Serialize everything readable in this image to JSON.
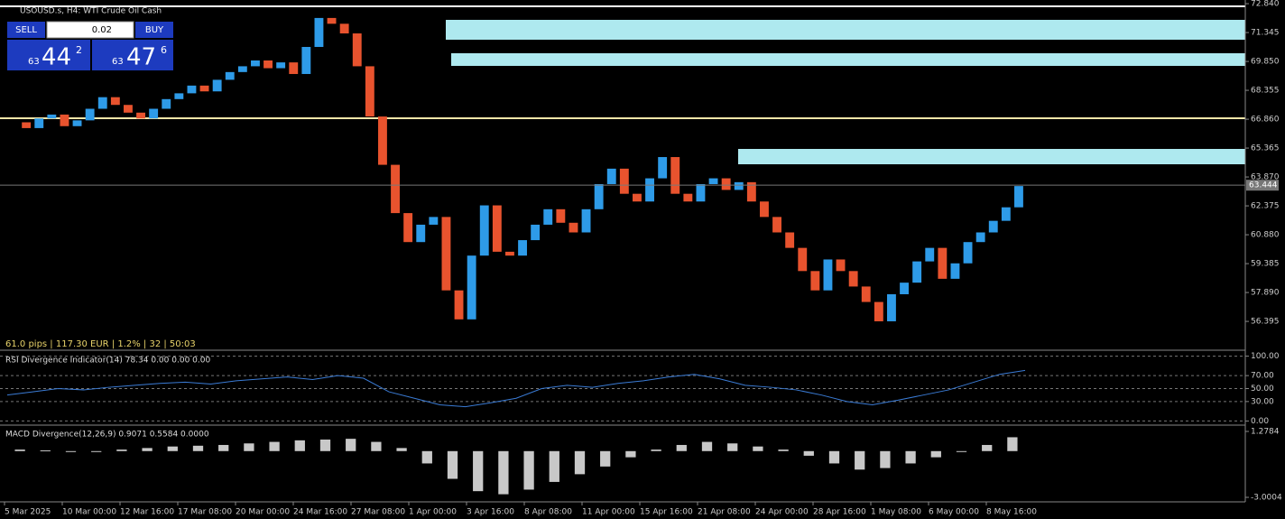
{
  "header": {
    "symbol": "USOUSD.s, H4:  WTI Crude Oil Cash"
  },
  "trade_panel": {
    "sell": "SELL",
    "lot": "0.02",
    "buy": "BUY",
    "bid": [
      "63",
      "44",
      "2"
    ],
    "ask": [
      "63",
      "47",
      "6"
    ]
  },
  "info": "61.0 pips | 117.30 EUR | 1.2% | 32 | 50:03",
  "chart_data": [
    {
      "type": "candlestick",
      "name": "price",
      "closes": [
        66.7,
        66.4,
        66.9,
        67.1,
        66.5,
        66.8,
        67.4,
        68.0,
        67.6,
        67.2,
        66.9,
        67.4,
        67.9,
        68.2,
        68.6,
        68.3,
        68.9,
        69.3,
        69.6,
        69.9,
        69.5,
        69.8,
        69.2,
        70.6,
        72.1,
        71.8,
        71.3,
        69.6,
        67.0,
        64.5,
        62.0,
        60.5,
        61.4,
        61.8,
        58.0,
        56.5,
        59.8,
        62.4,
        60.0,
        59.8,
        60.6,
        61.4,
        62.2,
        61.5,
        61.0,
        62.2,
        63.5,
        64.3,
        63.0,
        62.6,
        63.8,
        64.9,
        63.0,
        62.6,
        63.5,
        63.8,
        63.2,
        63.6,
        62.6,
        61.8,
        61.0,
        60.2,
        59.0,
        58.0,
        59.6,
        59.0,
        58.2,
        57.4,
        56.4,
        57.8,
        58.4,
        59.5,
        60.2,
        58.6,
        59.4,
        60.5,
        61.0,
        61.6,
        62.3,
        63.4
      ],
      "color_up": "#2e9be8",
      "color_down": "#e8532e",
      "ylim": [
        54.95,
        73.03
      ],
      "yticks": [
        {
          "value": 72.84,
          "label": "72.840"
        },
        71.345,
        {
          "value": 69.85,
          "label": "69.850"
        },
        68.355,
        {
          "value": 66.86,
          "label": "66.860"
        },
        65.365,
        {
          "value": 63.87,
          "label": "63.870"
        },
        62.375,
        {
          "value": 60.88,
          "label": "60.880"
        },
        59.385,
        {
          "value": 57.89,
          "label": "57.890"
        },
        56.395
      ],
      "current_price": 63.444,
      "xticks": [
        "5 Mar 2025",
        "10 Mar 00:00",
        "12 Mar 16:00",
        "17 Mar 08:00",
        "20 Mar 00:00",
        "24 Mar 16:00",
        "27 Mar 08:00",
        "1 Apr 00:00",
        "3 Apr 16:00",
        "8 Apr 08:00",
        "11 Apr 00:00",
        "15 Apr 16:00",
        "21 Apr 08:00",
        "24 Apr 00:00",
        "28 Apr 16:00",
        "1 May 08:00",
        "6 May 00:00",
        "8 May 16:00"
      ]
    },
    {
      "type": "line",
      "title": "RSI Divergence Indicator(14) 78.34 0.00 0.00 0.00",
      "color": "#3a7bd5",
      "values": [
        40,
        45,
        50,
        48,
        52,
        55,
        58,
        60,
        57,
        62,
        65,
        68,
        64,
        70,
        66,
        45,
        35,
        25,
        22,
        28,
        35,
        50,
        55,
        52,
        58,
        62,
        68,
        72,
        65,
        55,
        52,
        48,
        40,
        30,
        25,
        32,
        40,
        48,
        60,
        72,
        78
      ],
      "ylim": [
        -5,
        105
      ],
      "yticks": [
        {
          "value": 100,
          "label": "100.00"
        },
        {
          "value": 70,
          "label": "70.00"
        },
        {
          "value": 50,
          "label": "50.00"
        },
        {
          "value": 30,
          "label": "30.00"
        },
        {
          "value": 0,
          "label": "0.00"
        }
      ]
    },
    {
      "type": "histogram",
      "title": "MACD Divergence(12,26,9) 0.9071 0.5584 0.0000",
      "color": "#c8c8c8",
      "values": [
        0.1,
        0.05,
        0,
        -0.05,
        0.1,
        0.2,
        0.3,
        0.35,
        0.4,
        0.5,
        0.6,
        0.7,
        0.75,
        0.8,
        0.6,
        0.2,
        -0.8,
        -1.8,
        -2.6,
        -2.8,
        -2.5,
        -2.0,
        -1.5,
        -1.0,
        -0.4,
        0.1,
        0.4,
        0.6,
        0.5,
        0.3,
        0.1,
        -0.3,
        -0.8,
        -1.2,
        -1.1,
        -0.8,
        -0.4,
        0,
        0.4,
        0.9
      ],
      "ylim": [
        -3.235,
        1.57
      ],
      "yticks": [
        1.2784,
        -3.0004
      ]
    }
  ]
}
